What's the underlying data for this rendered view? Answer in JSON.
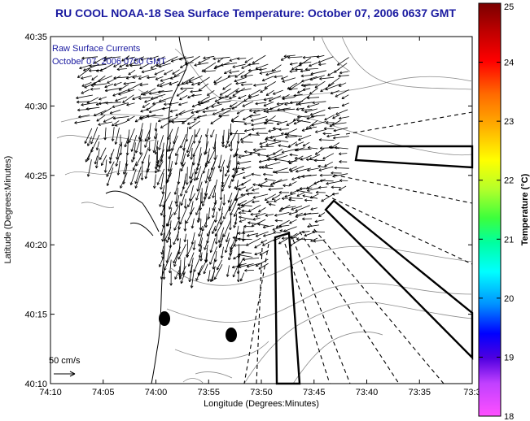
{
  "title": "RU COOL  NOAA-18  Sea Surface Temperature:  October 07, 2006 0637 GMT",
  "legend": {
    "line1": "Raw Surface Currents",
    "line2": "October 07, 2006 0700 GMT"
  },
  "scale_label": "50 cm/s",
  "axes": {
    "xlabel": "Longitude (Degrees:Minutes)",
    "ylabel": "Latitude (Degrees:Minutes)",
    "x_ticks": [
      "74:10",
      "74:05",
      "74:00",
      "73:55",
      "73:50",
      "73:45",
      "73:40",
      "73:35",
      "73:3"
    ],
    "y_ticks": [
      "40:35",
      "40:30",
      "40:25",
      "40:20",
      "40:15",
      "40:10"
    ]
  },
  "colorbar": {
    "label": "Temperature (°C)",
    "ticks": [
      "25",
      "24",
      "23",
      "22",
      "21",
      "20",
      "19",
      "18"
    ],
    "min": 18,
    "max": 25
  }
}
